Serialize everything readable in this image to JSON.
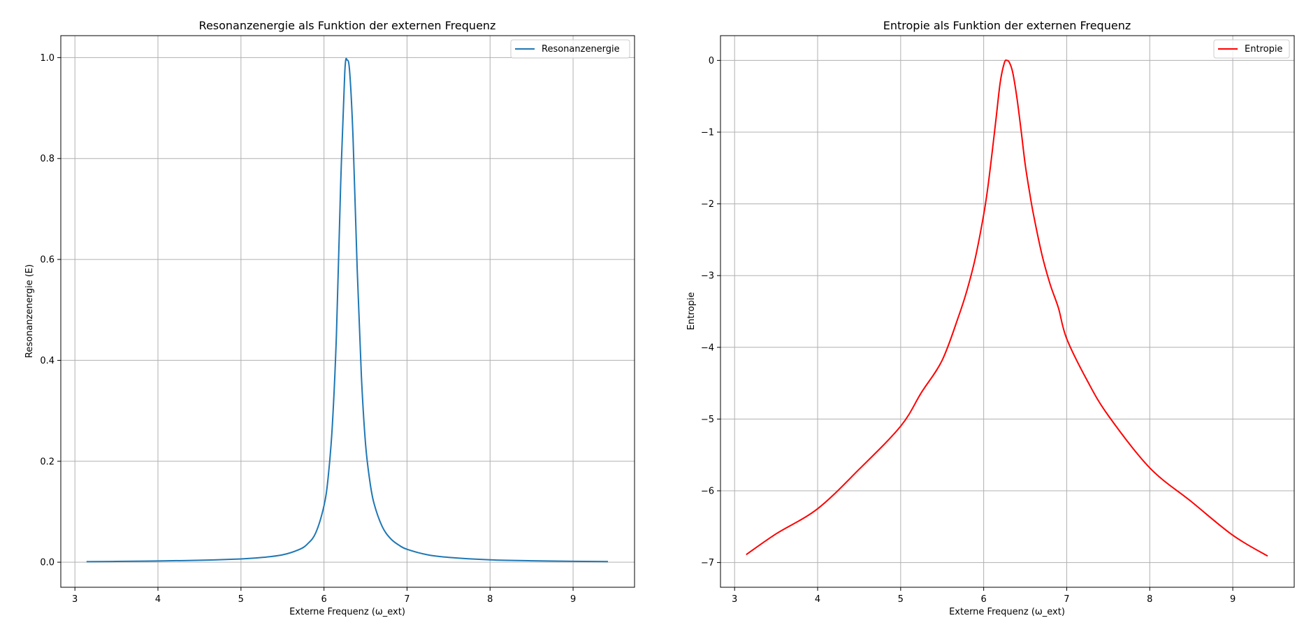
{
  "chart_data": [
    {
      "type": "line",
      "title": "Resonanzenergie als Funktion der externen Frequenz",
      "xlabel": "Externe Frequenz (ω_ext)",
      "ylabel": "Resonanzenergie (E)",
      "xlim": [
        2.83,
        9.74
      ],
      "ylim": [
        -0.0497,
        1.0435
      ],
      "xticks": [
        3,
        4,
        5,
        6,
        7,
        8,
        9
      ],
      "xtick_labels": [
        "3",
        "4",
        "5",
        "6",
        "7",
        "8",
        "9"
      ],
      "yticks": [
        0.0,
        0.2,
        0.4,
        0.6,
        0.8,
        1.0
      ],
      "ytick_labels": [
        "0.0",
        "0.2",
        "0.4",
        "0.6",
        "0.8",
        "1.0"
      ],
      "grid": true,
      "legend": "upper right",
      "series": [
        {
          "name": "Resonanzenergie",
          "color": "#1f77b4",
          "x": [
            3.14,
            3.5,
            4.0,
            4.5,
            5.0,
            5.25,
            5.5,
            5.7,
            5.8,
            5.9,
            6.0,
            6.05,
            6.1,
            6.15,
            6.2,
            6.25,
            6.28,
            6.31,
            6.35,
            6.4,
            6.45,
            6.5,
            6.55,
            6.6,
            6.7,
            6.8,
            6.9,
            7.0,
            7.25,
            7.5,
            8.0,
            8.5,
            9.0,
            9.42
          ],
          "y": [
            0.001,
            0.0015,
            0.0025,
            0.0038,
            0.0065,
            0.0093,
            0.0145,
            0.025,
            0.036,
            0.058,
            0.112,
            0.168,
            0.27,
            0.452,
            0.745,
            0.97,
            0.995,
            0.97,
            0.84,
            0.58,
            0.37,
            0.235,
            0.163,
            0.118,
            0.071,
            0.047,
            0.034,
            0.0255,
            0.0145,
            0.0095,
            0.0047,
            0.0028,
            0.0018,
            0.0013
          ]
        }
      ]
    },
    {
      "type": "line",
      "title": "Entropie als Funktion der externen Frequenz",
      "xlabel": "Externe Frequenz (ω_ext)",
      "ylabel": "Entropie",
      "xlim": [
        2.83,
        9.74
      ],
      "ylim": [
        -7.345,
        0.345
      ],
      "xticks": [
        3,
        4,
        5,
        6,
        7,
        8,
        9
      ],
      "xtick_labels": [
        "3",
        "4",
        "5",
        "6",
        "7",
        "8",
        "9"
      ],
      "yticks": [
        0,
        -1,
        -2,
        -3,
        -4,
        -5,
        -6,
        -7
      ],
      "ytick_labels": [
        "0",
        "−1",
        "−2",
        "−3",
        "−4",
        "−5",
        "−6",
        "−7"
      ],
      "grid": true,
      "legend": "upper right",
      "series": [
        {
          "name": "Entropie",
          "color": "#ff0000",
          "x": [
            3.14,
            3.5,
            4.0,
            4.5,
            5.0,
            5.25,
            5.5,
            5.7,
            5.8,
            5.9,
            6.0,
            6.05,
            6.1,
            6.15,
            6.2,
            6.25,
            6.28,
            6.31,
            6.35,
            6.4,
            6.45,
            6.5,
            6.55,
            6.6,
            6.7,
            6.8,
            6.9,
            7.0,
            7.25,
            7.5,
            8.0,
            8.5,
            9.0,
            9.42
          ],
          "y": [
            -6.89,
            -6.6,
            -6.25,
            -5.7,
            -5.1,
            -4.63,
            -4.18,
            -3.56,
            -3.2,
            -2.75,
            -2.15,
            -1.77,
            -1.3,
            -0.8,
            -0.3,
            -0.03,
            0.0,
            -0.03,
            -0.17,
            -0.52,
            -0.97,
            -1.45,
            -1.82,
            -2.15,
            -2.7,
            -3.12,
            -3.45,
            -3.88,
            -4.47,
            -4.95,
            -5.68,
            -6.15,
            -6.62,
            -6.91
          ]
        }
      ]
    }
  ]
}
